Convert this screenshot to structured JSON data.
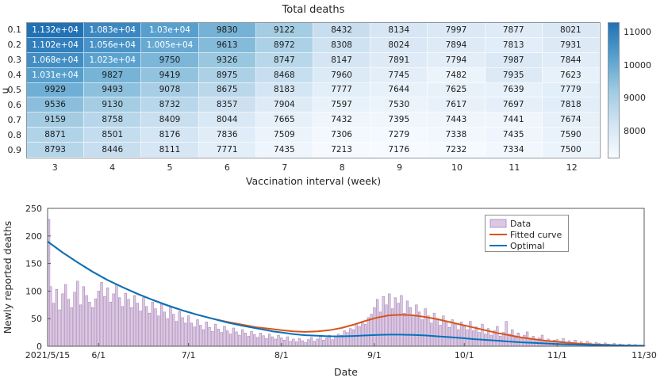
{
  "chart_data": [
    {
      "type": "heatmap",
      "title": "Total deaths",
      "xlabel": "Vaccination interval (week)",
      "ylabel": "u",
      "x_categories": [
        "3",
        "4",
        "5",
        "6",
        "7",
        "8",
        "9",
        "10",
        "11",
        "12"
      ],
      "y_categories": [
        "0.1",
        "0.2",
        "0.3",
        "0.4",
        "0.5",
        "0.6",
        "0.7",
        "0.8",
        "0.9"
      ],
      "display_values": [
        [
          "1.132e+04",
          "1.083e+04",
          "1.03e+04",
          "9830",
          "9122",
          "8432",
          "8134",
          "7997",
          "7877",
          "8021"
        ],
        [
          "1.102e+04",
          "1.056e+04",
          "1.005e+04",
          "9613",
          "8972",
          "8308",
          "8024",
          "7894",
          "7813",
          "7931"
        ],
        [
          "1.068e+04",
          "1.023e+04",
          "9750",
          "9326",
          "8747",
          "8147",
          "7891",
          "7794",
          "7987",
          "7844"
        ],
        [
          "1.031e+04",
          "9827",
          "9419",
          "8975",
          "8468",
          "7960",
          "7745",
          "7482",
          "7935",
          "7623"
        ],
        [
          "9929",
          "9493",
          "9078",
          "8675",
          "8183",
          "7777",
          "7644",
          "7625",
          "7639",
          "7779"
        ],
        [
          "9536",
          "9130",
          "8732",
          "8357",
          "7904",
          "7597",
          "7530",
          "7617",
          "7697",
          "7818"
        ],
        [
          "9159",
          "8758",
          "8409",
          "8044",
          "7665",
          "7432",
          "7395",
          "7443",
          "7441",
          "7674"
        ],
        [
          "8871",
          "8501",
          "8176",
          "7836",
          "7509",
          "7306",
          "7279",
          "7338",
          "7435",
          "7590"
        ],
        [
          "8793",
          "8446",
          "8111",
          "7771",
          "7435",
          "7213",
          "7176",
          "7232",
          "7334",
          "7500"
        ]
      ],
      "values": [
        [
          11320,
          10830,
          10300,
          9830,
          9122,
          8432,
          8134,
          7997,
          7877,
          8021
        ],
        [
          11020,
          10560,
          10050,
          9613,
          8972,
          8308,
          8024,
          7894,
          7813,
          7931
        ],
        [
          10680,
          10230,
          9750,
          9326,
          8747,
          8147,
          7891,
          7794,
          7987,
          7844
        ],
        [
          10310,
          9827,
          9419,
          8975,
          8468,
          7960,
          7745,
          7482,
          7935,
          7623
        ],
        [
          9929,
          9493,
          9078,
          8675,
          8183,
          7777,
          7644,
          7625,
          7639,
          7779
        ],
        [
          9536,
          9130,
          8732,
          8357,
          7904,
          7597,
          7530,
          7617,
          7697,
          7818
        ],
        [
          9159,
          8758,
          8409,
          8044,
          7665,
          7432,
          7395,
          7443,
          7441,
          7674
        ],
        [
          8871,
          8501,
          8176,
          7836,
          7509,
          7306,
          7279,
          7338,
          7435,
          7590
        ],
        [
          8793,
          8446,
          8111,
          7771,
          7435,
          7213,
          7176,
          7232,
          7334,
          7500
        ]
      ],
      "color_limits": [
        7176,
        11320
      ],
      "colorbar_ticks": [
        {
          "label": "8000",
          "value": 8000
        },
        {
          "label": "9000",
          "value": 9000
        },
        {
          "label": "10000",
          "value": 10000
        },
        {
          "label": "11000",
          "value": 11000
        }
      ],
      "colormap_stops": [
        "#f7fbff",
        "#d3e4f3",
        "#9ecae1",
        "#57a0ce",
        "#2171b5"
      ],
      "text_white_threshold": 0.68
    },
    {
      "type": "bar+line",
      "xlabel": "Date",
      "ylabel": "Newly reported deaths",
      "ylim": [
        0,
        250
      ],
      "y_ticks": [
        0,
        50,
        100,
        150,
        200,
        250
      ],
      "n_days": 200,
      "x_tick_days": [
        0,
        17,
        47,
        78,
        109,
        139,
        170,
        199
      ],
      "x_tick_labels": [
        "2021/5/15",
        "6/1",
        "7/1",
        "8/1",
        "9/1",
        "10/1",
        "11/1",
        "11/30"
      ],
      "bars": {
        "name": "Data",
        "fill": "#ddc8e4",
        "edge": "#a887b8",
        "values": [
          230,
          108,
          78,
          103,
          66,
          95,
          112,
          85,
          70,
          98,
          118,
          75,
          108,
          92,
          80,
          70,
          86,
          100,
          116,
          90,
          106,
          80,
          95,
          112,
          88,
          72,
          96,
          85,
          70,
          92,
          78,
          64,
          88,
          72,
          60,
          80,
          68,
          55,
          76,
          62,
          50,
          70,
          58,
          45,
          63,
          52,
          42,
          55,
          42,
          35,
          48,
          38,
          30,
          44,
          34,
          27,
          40,
          31,
          25,
          36,
          28,
          22,
          33,
          26,
          20,
          30,
          24,
          18,
          27,
          21,
          16,
          24,
          19,
          14,
          22,
          17,
          13,
          20,
          15,
          11,
          17,
          9,
          13,
          8,
          14,
          10,
          7,
          12,
          16,
          9,
          13,
          18,
          11,
          15,
          20,
          12,
          17,
          22,
          20,
          28,
          25,
          32,
          30,
          40,
          36,
          45,
          40,
          52,
          58,
          70,
          85,
          62,
          90,
          75,
          95,
          68,
          88,
          78,
          92,
          60,
          82,
          70,
          55,
          75,
          62,
          48,
          68,
          55,
          42,
          60,
          50,
          38,
          55,
          45,
          34,
          48,
          40,
          30,
          44,
          38,
          30,
          45,
          28,
          35,
          25,
          40,
          22,
          32,
          20,
          28,
          36,
          18,
          25,
          45,
          22,
          30,
          16,
          24,
          14,
          20,
          26,
          12,
          18,
          10,
          15,
          20,
          9,
          13,
          8,
          11,
          12,
          9,
          14,
          7,
          10,
          6,
          11,
          5,
          8,
          4,
          9,
          6,
          3,
          7,
          5,
          2,
          6,
          4,
          3,
          5,
          2,
          4,
          3,
          2,
          4,
          2,
          3,
          1,
          2,
          1
        ]
      },
      "series": [
        {
          "name": "Fitted curve",
          "color": "#d95319",
          "points": [
            [
              0,
              190
            ],
            [
              5,
              170
            ],
            [
              10,
              152
            ],
            [
              15,
              135
            ],
            [
              20,
              120
            ],
            [
              25,
              107
            ],
            [
              30,
              95
            ],
            [
              35,
              84
            ],
            [
              40,
              74
            ],
            [
              45,
              65
            ],
            [
              50,
              57
            ],
            [
              55,
              50
            ],
            [
              60,
              44
            ],
            [
              65,
              39
            ],
            [
              70,
              34
            ],
            [
              75,
              31
            ],
            [
              78,
              29
            ],
            [
              82,
              27
            ],
            [
              86,
              26
            ],
            [
              90,
              27
            ],
            [
              94,
              29
            ],
            [
              98,
              33
            ],
            [
              102,
              39
            ],
            [
              106,
              46
            ],
            [
              110,
              52
            ],
            [
              114,
              56
            ],
            [
              118,
              57
            ],
            [
              122,
              56
            ],
            [
              126,
              53
            ],
            [
              130,
              49
            ],
            [
              134,
              44
            ],
            [
              138,
              39
            ],
            [
              142,
              34
            ],
            [
              146,
              29
            ],
            [
              150,
              24
            ],
            [
              154,
              20
            ],
            [
              158,
              16
            ],
            [
              162,
              13
            ],
            [
              166,
              10
            ],
            [
              170,
              8
            ],
            [
              174,
              6
            ],
            [
              178,
              4.5
            ],
            [
              182,
              3.3
            ],
            [
              186,
              2.4
            ],
            [
              190,
              1.7
            ],
            [
              194,
              1.2
            ],
            [
              199,
              0.8
            ]
          ]
        },
        {
          "name": "Optimal",
          "color": "#0072bd",
          "points": [
            [
              0,
              190
            ],
            [
              5,
              170
            ],
            [
              10,
              152
            ],
            [
              15,
              135
            ],
            [
              20,
              120
            ],
            [
              25,
              107
            ],
            [
              30,
              95
            ],
            [
              35,
              84
            ],
            [
              40,
              74
            ],
            [
              45,
              65
            ],
            [
              50,
              57
            ],
            [
              55,
              50
            ],
            [
              60,
              43
            ],
            [
              65,
              37
            ],
            [
              70,
              32
            ],
            [
              75,
              27
            ],
            [
              78,
              25
            ],
            [
              82,
              22
            ],
            [
              86,
              20
            ],
            [
              90,
              19
            ],
            [
              94,
              18
            ],
            [
              98,
              18
            ],
            [
              102,
              18.5
            ],
            [
              106,
              19.5
            ],
            [
              110,
              20.5
            ],
            [
              114,
              21
            ],
            [
              118,
              21
            ],
            [
              122,
              20.5
            ],
            [
              126,
              19.5
            ],
            [
              130,
              18
            ],
            [
              134,
              16.5
            ],
            [
              138,
              15
            ],
            [
              142,
              13
            ],
            [
              146,
              11.5
            ],
            [
              150,
              10
            ],
            [
              154,
              8.5
            ],
            [
              158,
              7
            ],
            [
              162,
              6
            ],
            [
              166,
              5
            ],
            [
              170,
              4
            ],
            [
              174,
              3.3
            ],
            [
              178,
              2.7
            ],
            [
              182,
              2.2
            ],
            [
              186,
              1.8
            ],
            [
              190,
              1.4
            ],
            [
              194,
              1.1
            ],
            [
              199,
              0.8
            ]
          ]
        }
      ],
      "legend": {
        "position": "top-right",
        "entries": [
          "Data",
          "Fitted curve",
          "Optimal"
        ]
      }
    }
  ]
}
